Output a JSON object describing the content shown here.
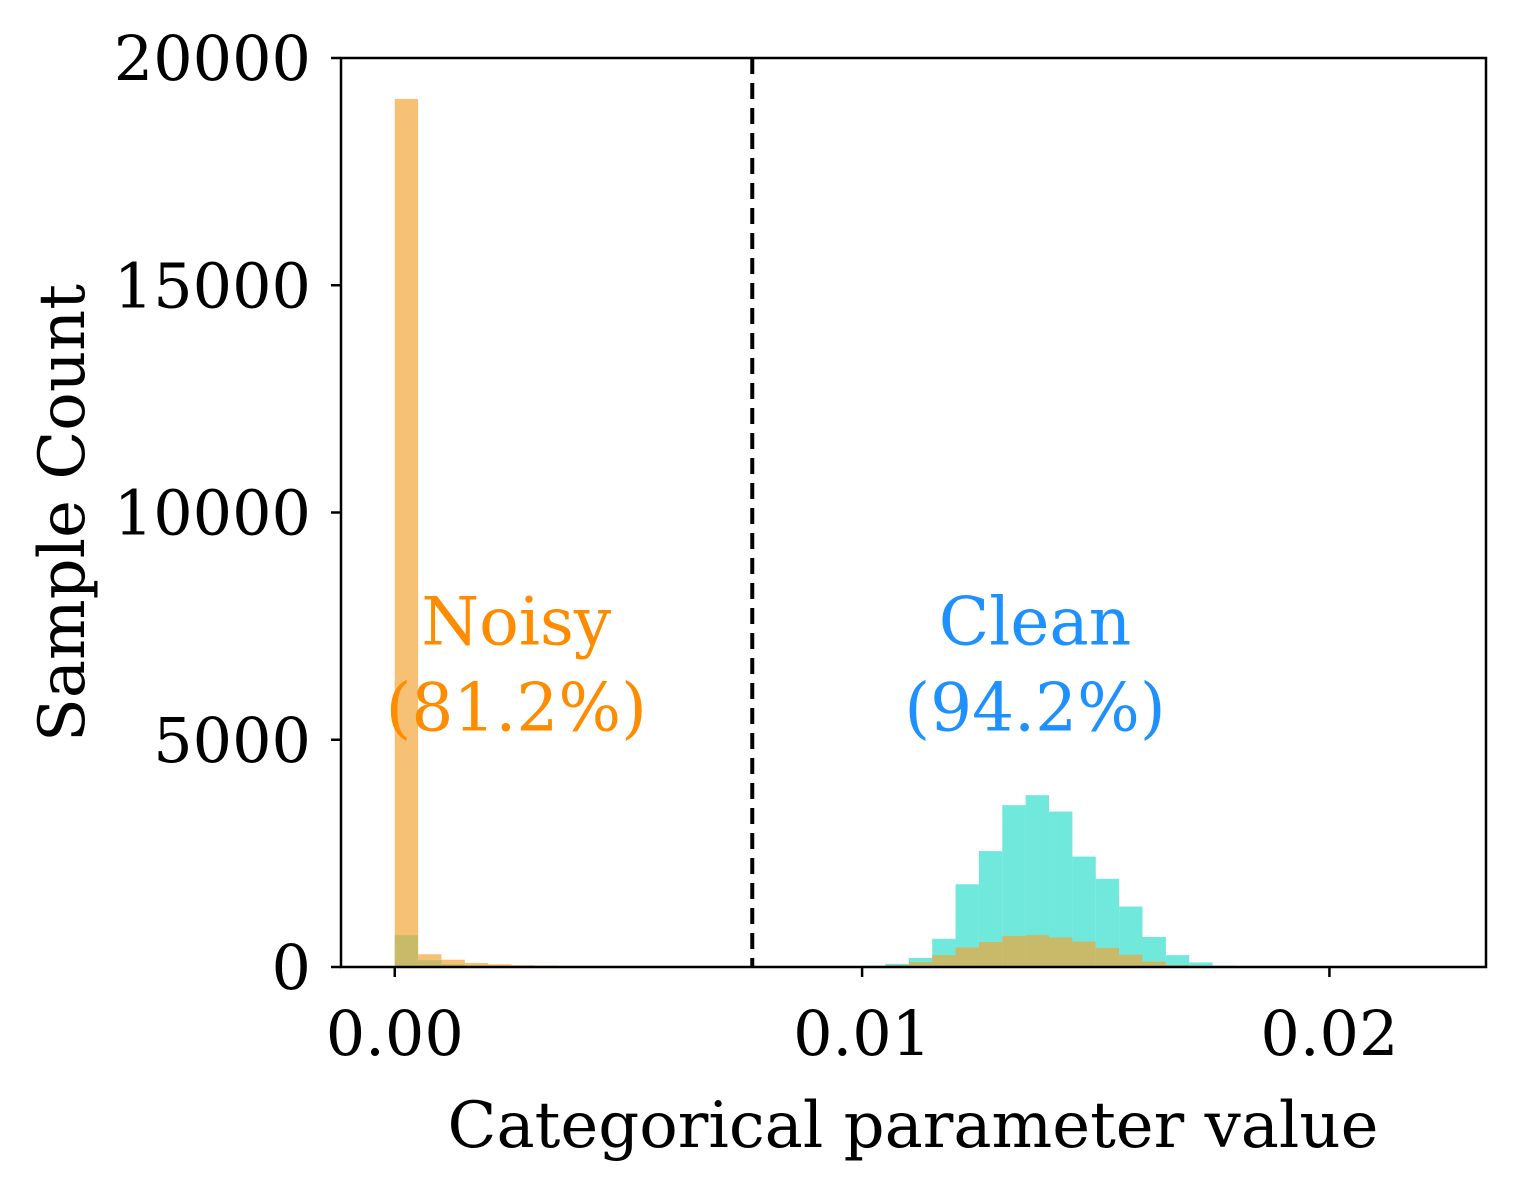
{
  "chart_data": {
    "type": "histogram",
    "title": "",
    "xlabel": "Categorical parameter value",
    "ylabel": "Sample Count",
    "xlim": [
      -0.00115,
      0.02335
    ],
    "ylim": [
      0,
      20000
    ],
    "xticks": [
      0.0,
      0.01,
      0.02
    ],
    "xtick_labels": [
      "0.00",
      "0.01",
      "0.02"
    ],
    "yticks": [
      0,
      5000,
      10000,
      15000,
      20000
    ],
    "ytick_labels": [
      "0",
      "5000",
      "10000",
      "15000",
      "20000"
    ],
    "grid": false,
    "bin_width": 0.0005,
    "series": [
      {
        "color": "#40E0D0",
        "alpha": 0.75,
        "bins": [
          {
            "x0": 0.0,
            "count": 700
          },
          {
            "x0": 0.0005,
            "count": 150
          },
          {
            "x0": 0.001,
            "count": 60
          },
          {
            "x0": 0.0015,
            "count": 30
          },
          {
            "x0": 0.002,
            "count": 15
          },
          {
            "x0": 0.0025,
            "count": 10
          },
          {
            "x0": 0.003,
            "count": 5
          },
          {
            "x0": 0.0035,
            "count": 5
          },
          {
            "x0": 0.004,
            "count": 5
          },
          {
            "x0": 0.0045,
            "count": 5
          },
          {
            "x0": 0.0095,
            "count": 20
          },
          {
            "x0": 0.01,
            "count": 30
          },
          {
            "x0": 0.0105,
            "count": 70
          },
          {
            "x0": 0.011,
            "count": 200
          },
          {
            "x0": 0.0115,
            "count": 620
          },
          {
            "x0": 0.012,
            "count": 1820
          },
          {
            "x0": 0.0125,
            "count": 2550
          },
          {
            "x0": 0.013,
            "count": 3560
          },
          {
            "x0": 0.0135,
            "count": 3780
          },
          {
            "x0": 0.014,
            "count": 3420
          },
          {
            "x0": 0.0145,
            "count": 2430
          },
          {
            "x0": 0.015,
            "count": 1940
          },
          {
            "x0": 0.0155,
            "count": 1330
          },
          {
            "x0": 0.016,
            "count": 660
          },
          {
            "x0": 0.0165,
            "count": 260
          },
          {
            "x0": 0.017,
            "count": 100
          },
          {
            "x0": 0.0175,
            "count": 30
          },
          {
            "x0": 0.018,
            "count": 10
          }
        ]
      },
      {
        "color": "#F2A432",
        "alpha": 0.68,
        "bins": [
          {
            "x0": 0.0,
            "count": 19100
          },
          {
            "x0": 0.0005,
            "count": 280
          },
          {
            "x0": 0.001,
            "count": 160
          },
          {
            "x0": 0.0015,
            "count": 90
          },
          {
            "x0": 0.002,
            "count": 60
          },
          {
            "x0": 0.0025,
            "count": 40
          },
          {
            "x0": 0.003,
            "count": 30
          },
          {
            "x0": 0.0035,
            "count": 20
          },
          {
            "x0": 0.004,
            "count": 15
          },
          {
            "x0": 0.0045,
            "count": 10
          },
          {
            "x0": 0.005,
            "count": 10
          },
          {
            "x0": 0.0055,
            "count": 5
          },
          {
            "x0": 0.006,
            "count": 5
          },
          {
            "x0": 0.01,
            "count": 10
          },
          {
            "x0": 0.0105,
            "count": 40
          },
          {
            "x0": 0.011,
            "count": 110
          },
          {
            "x0": 0.0115,
            "count": 260
          },
          {
            "x0": 0.012,
            "count": 430
          },
          {
            "x0": 0.0125,
            "count": 550
          },
          {
            "x0": 0.013,
            "count": 680
          },
          {
            "x0": 0.0135,
            "count": 700
          },
          {
            "x0": 0.014,
            "count": 650
          },
          {
            "x0": 0.0145,
            "count": 560
          },
          {
            "x0": 0.015,
            "count": 420
          },
          {
            "x0": 0.0155,
            "count": 270
          },
          {
            "x0": 0.016,
            "count": 120
          },
          {
            "x0": 0.0165,
            "count": 40
          },
          {
            "x0": 0.017,
            "count": 10
          }
        ]
      }
    ],
    "threshold": {
      "x": 0.00765,
      "style": "dashed",
      "color": "#000000"
    },
    "annotations": [
      {
        "line1": "Noisy",
        "line2": "(81.2%)",
        "color": "#FF8C00",
        "x": 0.0026,
        "y1": 7100,
        "y2": 5200
      },
      {
        "line1": "Clean",
        "line2": "(94.2%)",
        "color": "#1E90FF",
        "x": 0.0137,
        "y1": 7100,
        "y2": 5200
      }
    ]
  }
}
